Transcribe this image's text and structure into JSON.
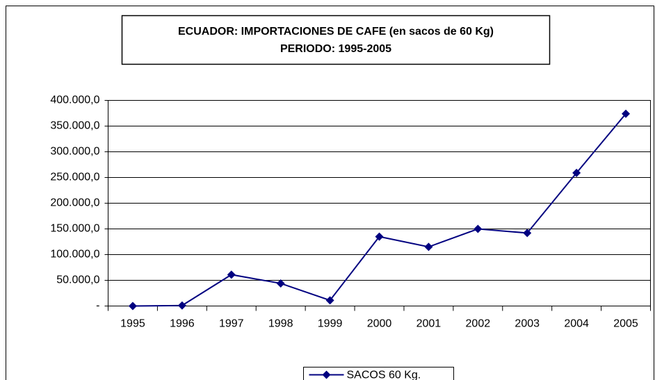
{
  "chart_data": {
    "type": "line",
    "title": "ECUADOR: IMPORTACIONES DE CAFE (en sacos de 60 Kg)",
    "subtitle": "PERIODO: 1995-2005",
    "categories": [
      "1995",
      "1996",
      "1997",
      "1998",
      "1999",
      "2000",
      "2001",
      "2002",
      "2003",
      "2004",
      "2005"
    ],
    "series": [
      {
        "name": "SACOS 60 Kg.",
        "color": "#000080",
        "values": [
          0,
          1000,
          61000,
          44000,
          11000,
          135000,
          115000,
          150000,
          142000,
          259000,
          374000
        ]
      }
    ],
    "ylim": [
      0,
      400000
    ],
    "yticks": [
      {
        "value": 0,
        "label": "-"
      },
      {
        "value": 50000,
        "label": "50.000,0"
      },
      {
        "value": 100000,
        "label": "100.000,0"
      },
      {
        "value": 150000,
        "label": "150.000,0"
      },
      {
        "value": 200000,
        "label": "200.000,0"
      },
      {
        "value": 250000,
        "label": "250.000,0"
      },
      {
        "value": 300000,
        "label": "300.000,0"
      },
      {
        "value": 350000,
        "label": "350.000,0"
      },
      {
        "value": 400000,
        "label": "400.000,0"
      }
    ],
    "grid": true,
    "legend": "bottom"
  }
}
